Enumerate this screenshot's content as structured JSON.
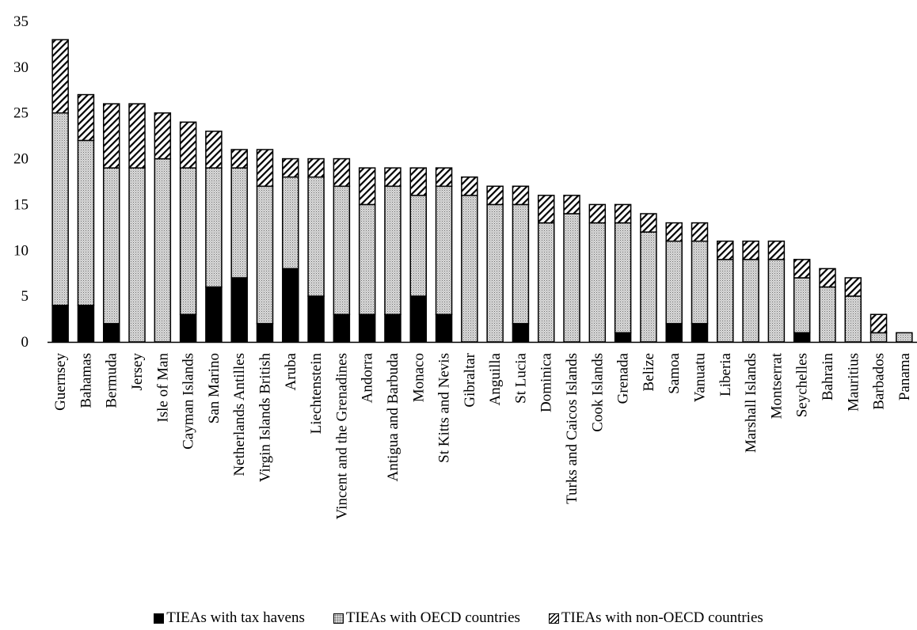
{
  "chart_data": {
    "type": "bar",
    "stacked": true,
    "title": "",
    "xlabel": "",
    "ylabel": "",
    "ylim": [
      0,
      35
    ],
    "yticks": [
      0,
      5,
      10,
      15,
      20,
      25,
      30,
      35
    ],
    "grid": false,
    "legend_position": "bottom",
    "categories": [
      "Guernsey",
      "Bahamas",
      "Bermuda",
      "Jersey",
      "Isle of Man",
      "Cayman Islands",
      "San Marino",
      "Netherlands Antilles",
      "Virgin Islands British",
      "Aruba",
      "Liechtenstein",
      "Vincent and the Grenadines",
      "Andorra",
      "Antigua and Barbuda",
      "Monaco",
      "St Kitts and Nevis",
      "Gibraltar",
      "Anguilla",
      "St Lucia",
      "Dominica",
      "Turks and Caicos Islands",
      "Cook Islands",
      "Grenada",
      "Belize",
      "Samoa",
      "Vanuatu",
      "Liberia",
      "Marshall Islands",
      "Montserrat",
      "Seychelles",
      "Bahrain",
      "Mauritius",
      "Barbados",
      "Panama"
    ],
    "series": [
      {
        "name": "TIEAs with tax havens",
        "pattern": "solid",
        "color": "#000000",
        "values": [
          4,
          4,
          2,
          0,
          0,
          3,
          6,
          7,
          2,
          8,
          5,
          3,
          3,
          3,
          5,
          3,
          0,
          0,
          2,
          0,
          0,
          0,
          1,
          0,
          2,
          2,
          0,
          0,
          0,
          1,
          0,
          0,
          0,
          0
        ]
      },
      {
        "name": "TIEAs with OECD countries",
        "pattern": "dotted",
        "color": "#d6d6d6",
        "values": [
          21,
          18,
          17,
          19,
          20,
          16,
          13,
          12,
          15,
          10,
          13,
          14,
          12,
          14,
          11,
          14,
          16,
          15,
          13,
          13,
          14,
          13,
          12,
          12,
          9,
          9,
          9,
          9,
          9,
          6,
          6,
          5,
          1,
          1
        ]
      },
      {
        "name": "TIEAs with non-OECD countries",
        "pattern": "hatched",
        "color": "#ffffff",
        "values": [
          8,
          5,
          7,
          7,
          5,
          5,
          4,
          2,
          4,
          2,
          2,
          3,
          4,
          2,
          3,
          2,
          2,
          2,
          2,
          3,
          2,
          2,
          2,
          2,
          2,
          2,
          2,
          2,
          2,
          2,
          2,
          2,
          2,
          0
        ]
      }
    ]
  }
}
